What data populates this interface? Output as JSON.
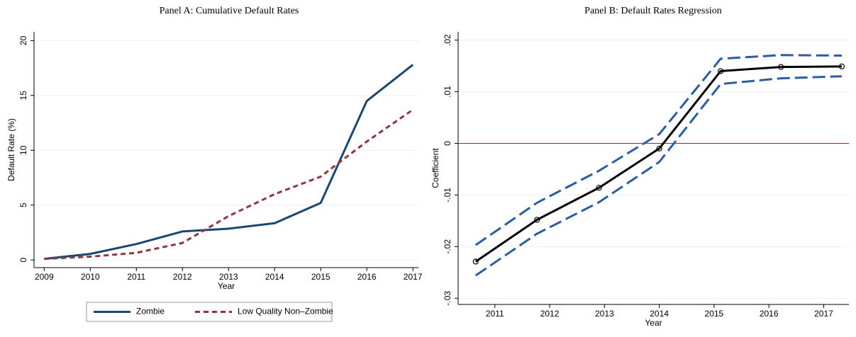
{
  "chart_data": [
    {
      "type": "line",
      "title": "Panel A: Cumulative Default Rates",
      "xlabel": "Year",
      "ylabel": "Default Rate (%)",
      "x": [
        2009,
        2010,
        2011,
        2012,
        2013,
        2014,
        2015,
        2016,
        2017
      ],
      "series": [
        {
          "name": "Zombie",
          "color": "#1a476f",
          "dash": false,
          "values": [
            0.1,
            0.55,
            1.45,
            2.6,
            2.85,
            3.35,
            5.2,
            14.5,
            17.8
          ]
        },
        {
          "name": "Low Quality Non–Zombie",
          "color": "#90353b",
          "dash": true,
          "values": [
            0.1,
            0.3,
            0.65,
            1.55,
            4.0,
            6.0,
            7.6,
            10.8,
            13.7
          ]
        }
      ],
      "xlim": [
        2008.78,
        2017.12
      ],
      "xticks": [
        2009,
        2010,
        2011,
        2012,
        2013,
        2014,
        2015,
        2016,
        2017
      ],
      "ylim": [
        -0.7,
        20.8
      ],
      "yticks": [
        0,
        5,
        10,
        15,
        20
      ],
      "grid": true,
      "legend": "bottom"
    },
    {
      "type": "line",
      "title": "Panel B: Default Rates Regression",
      "xlabel": "Year",
      "ylabel": "Coefficient",
      "x": [
        2010.65,
        2011.77,
        2012.9,
        2014.0,
        2015.12,
        2016.22,
        2017.33
      ],
      "series": [
        {
          "color": "#2a5ca8",
          "dash": true,
          "values": [
            -0.0197,
            -0.0115,
            -0.0053,
            0.0018,
            0.0164,
            0.0171,
            0.017
          ]
        },
        {
          "color": "#2a5ca8",
          "dash": true,
          "values": [
            -0.0256,
            -0.0175,
            -0.0114,
            -0.0036,
            0.0115,
            0.0126,
            0.013
          ]
        },
        {
          "color": "#000000",
          "dash": false,
          "markers": true,
          "values": [
            -0.0229,
            -0.0148,
            -0.0086,
            -0.001,
            0.014,
            0.0148,
            0.0149
          ]
        }
      ],
      "hline": 0,
      "hline_color": "#e8000b",
      "xlim": [
        2010.33,
        2017.46
      ],
      "xticks": [
        2011,
        2012,
        2013,
        2014,
        2015,
        2016,
        2017
      ],
      "ylim": [
        -0.0312,
        0.0216
      ],
      "yticks": [
        {
          "value": -0.03,
          "label": "-.03"
        },
        {
          "value": -0.02,
          "label": "-.02"
        },
        {
          "value": -0.01,
          "label": "-.01"
        },
        0,
        {
          "value": 0.01,
          "label": ".01"
        },
        {
          "value": 0.02,
          "label": ".02"
        }
      ],
      "grid": true
    }
  ]
}
